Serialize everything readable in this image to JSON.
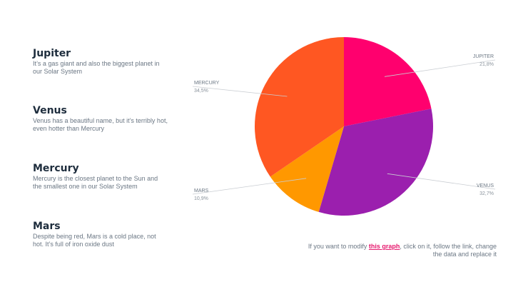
{
  "planets": [
    {
      "name": "Jupiter",
      "desc": "It’s a gas giant and also the biggest planet in our Solar System"
    },
    {
      "name": "Venus",
      "desc": "Venus has a beautiful name, but it’s terribly hot, even hotter than Mercury"
    },
    {
      "name": "Mercury",
      "desc": "Mercury is the closest planet to the Sun and the smallest one in our Solar System"
    },
    {
      "name": "Mars",
      "desc": "Despite being red, Mars is a cold place, not hot. It’s full of iron oxide dust"
    }
  ],
  "footnote": {
    "before": "If you want to modify ",
    "link": "this graph",
    "after": ", click on it, follow the link, change the data and replace it"
  },
  "chart_data": {
    "type": "pie",
    "title": "",
    "series": [
      {
        "slices": [
          {
            "label": "JUPITER",
            "value": 21.8,
            "value_label": "21,8%",
            "color": "#ff006e"
          },
          {
            "label": "VENUS",
            "value": 32.7,
            "value_label": "32,7%",
            "color": "#9b1fae"
          },
          {
            "label": "MARS",
            "value": 10.9,
            "value_label": "10,9%",
            "color": "#ff9800"
          },
          {
            "label": "MERCURY",
            "value": 34.5,
            "value_label": "34,5%",
            "color": "#ff5722"
          }
        ]
      }
    ],
    "start_angle_deg": 0,
    "direction": "clockwise",
    "legend": "none"
  }
}
